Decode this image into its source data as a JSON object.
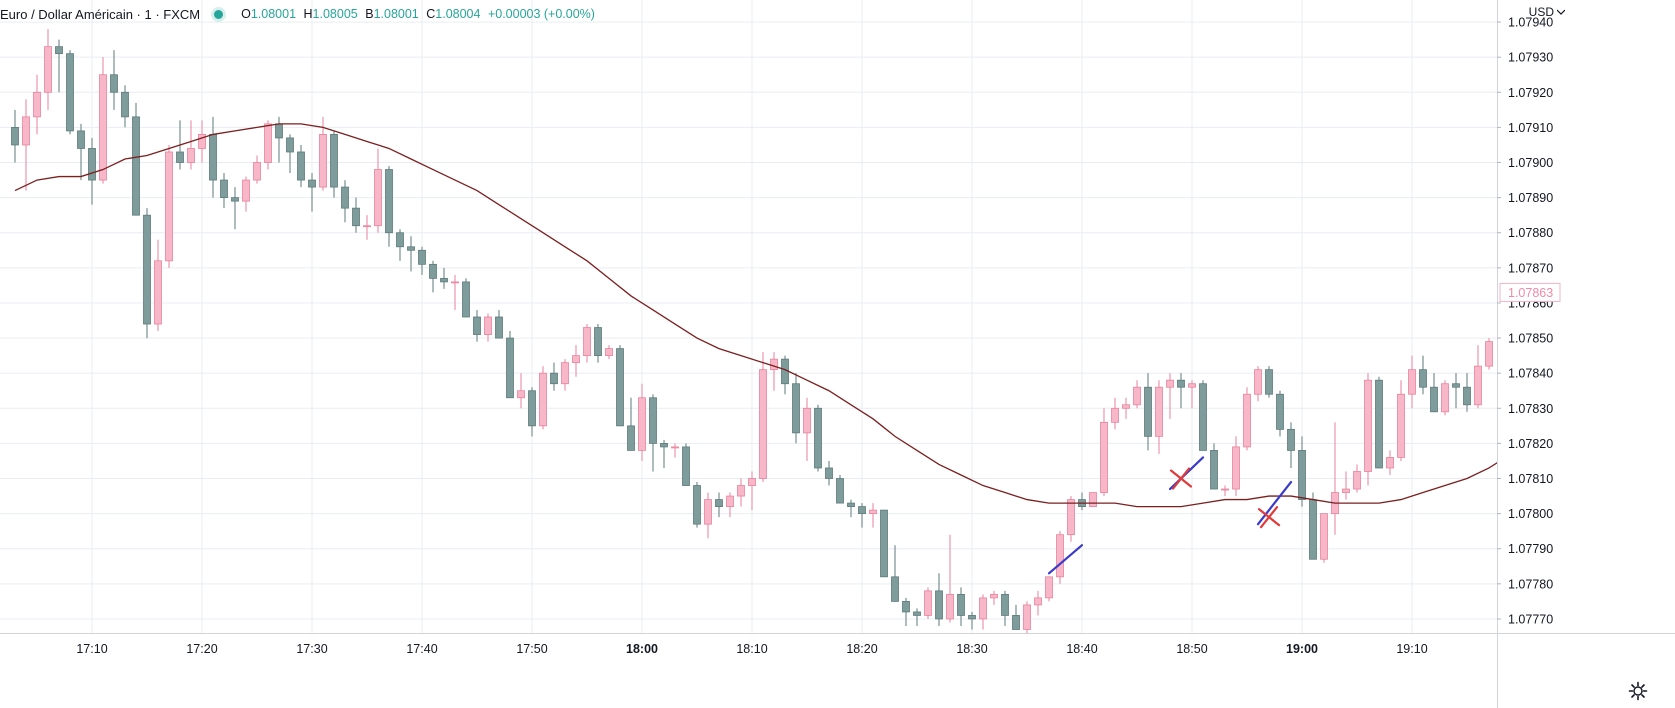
{
  "legend": {
    "symbol": "Euro / Dollar Américain · 1 · FXCM",
    "open_label": "O",
    "open": "1.08001",
    "high_label": "H",
    "high": "1.08005",
    "low_label": "B",
    "low": "1.08001",
    "close_label": "C",
    "close": "1.08004",
    "change": "+0.00003 (+0.00%)"
  },
  "price_scale": {
    "currency": "USD",
    "ticks": [
      "1.07940",
      "1.07930",
      "1.07920",
      "1.07910",
      "1.07900",
      "1.07890",
      "1.07880",
      "1.07870",
      "1.07860",
      "1.07850",
      "1.07840",
      "1.07830",
      "1.07820",
      "1.07810",
      "1.07800",
      "1.07790",
      "1.07780",
      "1.07770"
    ],
    "current_price": "1.07863"
  },
  "chart_data": {
    "type": "candlestick",
    "x_unit": "time, 1-minute bars",
    "ylim": [
      1.07766,
      1.07946
    ],
    "x_ticks": [
      {
        "label": "17:10",
        "bold": false
      },
      {
        "label": "17:20",
        "bold": false
      },
      {
        "label": "17:30",
        "bold": false
      },
      {
        "label": "17:40",
        "bold": false
      },
      {
        "label": "17:50",
        "bold": false
      },
      {
        "label": "18:00",
        "bold": true
      },
      {
        "label": "18:10",
        "bold": false
      },
      {
        "label": "18:20",
        "bold": false
      },
      {
        "label": "18:30",
        "bold": false
      },
      {
        "label": "18:40",
        "bold": false
      },
      {
        "label": "18:50",
        "bold": false
      },
      {
        "label": "19:00",
        "bold": true
      },
      {
        "label": "19:10",
        "bold": false
      }
    ],
    "candles": [
      [
        17.03,
        1.0791,
        1.07915,
        1.079,
        1.07905
      ],
      [
        17.04,
        1.07905,
        1.07918,
        1.07892,
        1.07913
      ],
      [
        17.05,
        1.07913,
        1.07925,
        1.07908,
        1.0792
      ],
      [
        17.06,
        1.0792,
        1.07938,
        1.07915,
        1.07933
      ],
      [
        17.07,
        1.07933,
        1.07935,
        1.0792,
        1.07931
      ],
      [
        17.08,
        1.07931,
        1.07932,
        1.07908,
        1.07909
      ],
      [
        17.09,
        1.07909,
        1.07911,
        1.07895,
        1.07904
      ],
      [
        17.1,
        1.07904,
        1.07907,
        1.07888,
        1.07895
      ],
      [
        17.11,
        1.07895,
        1.0793,
        1.07894,
        1.07925
      ],
      [
        17.12,
        1.07925,
        1.07932,
        1.07915,
        1.0792
      ],
      [
        17.13,
        1.0792,
        1.07922,
        1.0791,
        1.07913
      ],
      [
        17.14,
        1.07913,
        1.07917,
        1.07885,
        1.07885
      ],
      [
        17.15,
        1.07885,
        1.07887,
        1.0785,
        1.07854
      ],
      [
        17.16,
        1.07854,
        1.07878,
        1.07852,
        1.07872
      ],
      [
        17.17,
        1.07872,
        1.07905,
        1.0787,
        1.07903
      ],
      [
        17.18,
        1.07903,
        1.07912,
        1.07898,
        1.079
      ],
      [
        17.19,
        1.079,
        1.07912,
        1.07898,
        1.07904
      ],
      [
        17.2,
        1.07904,
        1.07912,
        1.079,
        1.07908
      ],
      [
        17.21,
        1.07908,
        1.07913,
        1.0789,
        1.07895
      ],
      [
        17.22,
        1.07895,
        1.07897,
        1.07887,
        1.0789
      ],
      [
        17.23,
        1.0789,
        1.07893,
        1.07881,
        1.07889
      ],
      [
        17.24,
        1.07889,
        1.07896,
        1.07886,
        1.07895
      ],
      [
        17.25,
        1.07895,
        1.07902,
        1.07894,
        1.079
      ],
      [
        17.26,
        1.079,
        1.07912,
        1.07898,
        1.07911
      ],
      [
        17.27,
        1.07911,
        1.07913,
        1.079,
        1.07907
      ],
      [
        17.28,
        1.07907,
        1.07908,
        1.07897,
        1.07903
      ],
      [
        17.29,
        1.07903,
        1.07905,
        1.07893,
        1.07895
      ],
      [
        17.3,
        1.07895,
        1.07897,
        1.07886,
        1.07893
      ],
      [
        17.31,
        1.07893,
        1.07913,
        1.07892,
        1.07908
      ],
      [
        17.32,
        1.07908,
        1.07909,
        1.0789,
        1.07893
      ],
      [
        17.33,
        1.07893,
        1.07895,
        1.07883,
        1.07887
      ],
      [
        17.34,
        1.07887,
        1.0789,
        1.0788,
        1.07882
      ],
      [
        17.35,
        1.07882,
        1.07885,
        1.07878,
        1.07882
      ],
      [
        17.36,
        1.07882,
        1.07904,
        1.0788,
        1.07898
      ],
      [
        17.37,
        1.07898,
        1.07899,
        1.07876,
        1.0788
      ],
      [
        17.38,
        1.0788,
        1.07881,
        1.07872,
        1.07876
      ],
      [
        17.39,
        1.07876,
        1.07879,
        1.07869,
        1.07875
      ],
      [
        17.4,
        1.07875,
        1.07876,
        1.07868,
        1.07871
      ],
      [
        17.41,
        1.07871,
        1.07872,
        1.07863,
        1.07867
      ],
      [
        17.42,
        1.07867,
        1.0787,
        1.07864,
        1.07866
      ],
      [
        17.43,
        1.07866,
        1.07868,
        1.07858,
        1.07866
      ],
      [
        17.44,
        1.07866,
        1.07867,
        1.07856,
        1.07856
      ],
      [
        17.45,
        1.07856,
        1.07858,
        1.07849,
        1.07851
      ],
      [
        17.46,
        1.07851,
        1.07857,
        1.07849,
        1.07856
      ],
      [
        17.47,
        1.07856,
        1.07858,
        1.0785,
        1.0785
      ],
      [
        17.48,
        1.0785,
        1.07852,
        1.07833,
        1.07833
      ],
      [
        17.49,
        1.07833,
        1.0784,
        1.0783,
        1.07835
      ],
      [
        17.5,
        1.07835,
        1.07836,
        1.07822,
        1.07825
      ],
      [
        17.51,
        1.07825,
        1.07842,
        1.07824,
        1.0784
      ],
      [
        17.52,
        1.0784,
        1.07843,
        1.07835,
        1.07837
      ],
      [
        17.53,
        1.07837,
        1.07844,
        1.07835,
        1.07843
      ],
      [
        17.54,
        1.07843,
        1.07848,
        1.07839,
        1.07845
      ],
      [
        17.55,
        1.07845,
        1.07854,
        1.07843,
        1.07853
      ],
      [
        17.56,
        1.07853,
        1.07854,
        1.07843,
        1.07845
      ],
      [
        17.57,
        1.07845,
        1.07848,
        1.07844,
        1.07847
      ],
      [
        17.58,
        1.07847,
        1.07848,
        1.07825,
        1.07825
      ],
      [
        17.59,
        1.07825,
        1.07833,
        1.07818,
        1.07818
      ],
      [
        18.0,
        1.07818,
        1.07837,
        1.07815,
        1.07833
      ],
      [
        18.01,
        1.07833,
        1.07834,
        1.07812,
        1.0782
      ],
      [
        18.02,
        1.0782,
        1.07821,
        1.07813,
        1.07819
      ],
      [
        18.03,
        1.07819,
        1.0782,
        1.07816,
        1.07819
      ],
      [
        18.04,
        1.07819,
        1.0782,
        1.07808,
        1.07808
      ],
      [
        18.05,
        1.07808,
        1.07809,
        1.07796,
        1.07797
      ],
      [
        18.06,
        1.07797,
        1.07806,
        1.07793,
        1.07804
      ],
      [
        18.07,
        1.07804,
        1.07806,
        1.07799,
        1.07802
      ],
      [
        18.08,
        1.07802,
        1.07806,
        1.07799,
        1.07805
      ],
      [
        18.09,
        1.07805,
        1.0781,
        1.07802,
        1.07808
      ],
      [
        18.1,
        1.07808,
        1.07812,
        1.07801,
        1.0781
      ],
      [
        18.11,
        1.0781,
        1.07846,
        1.07809,
        1.07841
      ],
      [
        18.12,
        1.07841,
        1.07846,
        1.07835,
        1.07844
      ],
      [
        18.13,
        1.07844,
        1.07845,
        1.07834,
        1.07837
      ],
      [
        18.14,
        1.07837,
        1.0784,
        1.0782,
        1.07823
      ],
      [
        18.15,
        1.07823,
        1.07833,
        1.07815,
        1.0783
      ],
      [
        18.16,
        1.0783,
        1.07831,
        1.07812,
        1.07813
      ],
      [
        18.17,
        1.07813,
        1.07815,
        1.07808,
        1.0781
      ],
      [
        18.18,
        1.0781,
        1.07811,
        1.07803,
        1.07803
      ],
      [
        18.19,
        1.07803,
        1.07804,
        1.07799,
        1.07802
      ],
      [
        18.2,
        1.07802,
        1.07803,
        1.07796,
        1.078
      ],
      [
        18.21,
        1.078,
        1.07803,
        1.07796,
        1.07801
      ],
      [
        18.22,
        1.07801,
        1.07801,
        1.07782,
        1.07782
      ],
      [
        18.23,
        1.07782,
        1.07791,
        1.07775,
        1.07775
      ],
      [
        18.24,
        1.07775,
        1.07776,
        1.07768,
        1.07772
      ],
      [
        18.25,
        1.07772,
        1.07773,
        1.07768,
        1.07771
      ],
      [
        18.26,
        1.07771,
        1.07779,
        1.0777,
        1.07778
      ],
      [
        18.27,
        1.07778,
        1.07783,
        1.07768,
        1.0777
      ],
      [
        18.28,
        1.0777,
        1.07794,
        1.07769,
        1.07777
      ],
      [
        18.29,
        1.07777,
        1.07779,
        1.07768,
        1.07771
      ],
      [
        18.3,
        1.07771,
        1.07772,
        1.07767,
        1.0777
      ],
      [
        18.31,
        1.0777,
        1.07777,
        1.07767,
        1.07776
      ],
      [
        18.32,
        1.07776,
        1.07778,
        1.07774,
        1.07777
      ],
      [
        18.33,
        1.07777,
        1.07778,
        1.07768,
        1.07771
      ],
      [
        18.34,
        1.07771,
        1.07774,
        1.07767,
        1.07767
      ],
      [
        18.35,
        1.07767,
        1.07775,
        1.07766,
        1.07774
      ],
      [
        18.36,
        1.07774,
        1.07778,
        1.07771,
        1.07776
      ],
      [
        18.37,
        1.07776,
        1.07782,
        1.07775,
        1.07782
      ],
      [
        18.38,
        1.07782,
        1.07795,
        1.0778,
        1.07794
      ],
      [
        18.39,
        1.07794,
        1.07805,
        1.07792,
        1.07804
      ],
      [
        18.4,
        1.07804,
        1.07806,
        1.07801,
        1.07802
      ],
      [
        18.41,
        1.07802,
        1.07806,
        1.07802,
        1.07806
      ],
      [
        18.42,
        1.07806,
        1.0783,
        1.07805,
        1.07826
      ],
      [
        18.43,
        1.07826,
        1.07833,
        1.07824,
        1.0783
      ],
      [
        18.44,
        1.0783,
        1.07833,
        1.07827,
        1.07831
      ],
      [
        18.45,
        1.07831,
        1.07838,
        1.0783,
        1.07836
      ],
      [
        18.46,
        1.07836,
        1.0784,
        1.07818,
        1.07822
      ],
      [
        18.47,
        1.07822,
        1.07838,
        1.07817,
        1.07836
      ],
      [
        18.48,
        1.07836,
        1.0784,
        1.07827,
        1.07838
      ],
      [
        18.49,
        1.07838,
        1.0784,
        1.0783,
        1.07836
      ],
      [
        18.5,
        1.07836,
        1.07838,
        1.0783,
        1.07837
      ],
      [
        18.51,
        1.07837,
        1.07838,
        1.07818,
        1.07818
      ],
      [
        18.52,
        1.07818,
        1.0782,
        1.07807,
        1.07807
      ],
      [
        18.53,
        1.07807,
        1.07808,
        1.07805,
        1.07807
      ],
      [
        18.54,
        1.07807,
        1.07822,
        1.07805,
        1.07819
      ],
      [
        18.55,
        1.07819,
        1.07836,
        1.07818,
        1.07834
      ],
      [
        18.56,
        1.07834,
        1.07842,
        1.07832,
        1.07841
      ],
      [
        18.57,
        1.07841,
        1.07842,
        1.07833,
        1.07834
      ],
      [
        18.58,
        1.07834,
        1.07835,
        1.07822,
        1.07824
      ],
      [
        18.59,
        1.07824,
        1.07826,
        1.07813,
        1.07818
      ],
      [
        19.0,
        1.07818,
        1.07822,
        1.07802,
        1.07804
      ],
      [
        19.01,
        1.07804,
        1.07806,
        1.07787,
        1.07787
      ],
      [
        19.02,
        1.07787,
        1.078,
        1.07786,
        1.078
      ],
      [
        19.03,
        1.078,
        1.07826,
        1.07794,
        1.07806
      ],
      [
        19.04,
        1.07806,
        1.07812,
        1.07804,
        1.07807
      ],
      [
        19.05,
        1.07807,
        1.07814,
        1.07806,
        1.07812
      ],
      [
        19.06,
        1.07812,
        1.0784,
        1.07808,
        1.07838
      ],
      [
        19.07,
        1.07838,
        1.07839,
        1.07813,
        1.07813
      ],
      [
        19.08,
        1.07813,
        1.07818,
        1.07811,
        1.07816
      ],
      [
        19.09,
        1.07816,
        1.07838,
        1.07815,
        1.07834
      ],
      [
        19.1,
        1.07834,
        1.07845,
        1.0783,
        1.07841
      ],
      [
        19.11,
        1.07841,
        1.07845,
        1.07834,
        1.07836
      ],
      [
        19.12,
        1.07836,
        1.0784,
        1.0783,
        1.07829
      ],
      [
        19.13,
        1.07829,
        1.07838,
        1.07828,
        1.07837
      ],
      [
        19.14,
        1.07837,
        1.0784,
        1.0783,
        1.07836
      ],
      [
        19.15,
        1.07836,
        1.0784,
        1.07829,
        1.07831
      ],
      [
        19.16,
        1.07831,
        1.07848,
        1.0783,
        1.07842
      ],
      [
        19.17,
        1.07842,
        1.0785,
        1.07841,
        1.07849
      ]
    ],
    "moving_average": {
      "color": "#7b1f1f",
      "points": [
        [
          17.03,
          1.07892
        ],
        [
          17.05,
          1.07895
        ],
        [
          17.07,
          1.07896
        ],
        [
          17.09,
          1.07896
        ],
        [
          17.11,
          1.07898
        ],
        [
          17.13,
          1.07901
        ],
        [
          17.15,
          1.07902
        ],
        [
          17.17,
          1.07904
        ],
        [
          17.19,
          1.07906
        ],
        [
          17.21,
          1.07908
        ],
        [
          17.23,
          1.07909
        ],
        [
          17.25,
          1.0791
        ],
        [
          17.27,
          1.07911
        ],
        [
          17.29,
          1.07911
        ],
        [
          17.31,
          1.0791
        ],
        [
          17.33,
          1.07908
        ],
        [
          17.35,
          1.07906
        ],
        [
          17.37,
          1.07904
        ],
        [
          17.39,
          1.07901
        ],
        [
          17.41,
          1.07898
        ],
        [
          17.43,
          1.07895
        ],
        [
          17.45,
          1.07892
        ],
        [
          17.47,
          1.07888
        ],
        [
          17.49,
          1.07884
        ],
        [
          17.51,
          1.0788
        ],
        [
          17.53,
          1.07876
        ],
        [
          17.55,
          1.07872
        ],
        [
          17.57,
          1.07867
        ],
        [
          17.59,
          1.07862
        ],
        [
          18.01,
          1.07858
        ],
        [
          18.03,
          1.07854
        ],
        [
          18.05,
          1.0785
        ],
        [
          18.07,
          1.07847
        ],
        [
          18.09,
          1.07845
        ],
        [
          18.11,
          1.07843
        ],
        [
          18.13,
          1.07841
        ],
        [
          18.15,
          1.07838
        ],
        [
          18.17,
          1.07835
        ],
        [
          18.19,
          1.07831
        ],
        [
          18.21,
          1.07827
        ],
        [
          18.23,
          1.07822
        ],
        [
          18.25,
          1.07818
        ],
        [
          18.27,
          1.07814
        ],
        [
          18.29,
          1.07811
        ],
        [
          18.31,
          1.07808
        ],
        [
          18.33,
          1.07806
        ],
        [
          18.35,
          1.07804
        ],
        [
          18.37,
          1.07803
        ],
        [
          18.39,
          1.07803
        ],
        [
          18.41,
          1.07803
        ],
        [
          18.43,
          1.07803
        ],
        [
          18.45,
          1.07802
        ],
        [
          18.47,
          1.07802
        ],
        [
          18.49,
          1.07802
        ],
        [
          18.51,
          1.07803
        ],
        [
          18.53,
          1.07804
        ],
        [
          18.55,
          1.07804
        ],
        [
          18.57,
          1.07805
        ],
        [
          18.59,
          1.07805
        ],
        [
          19.01,
          1.07804
        ],
        [
          19.03,
          1.07803
        ],
        [
          19.05,
          1.07803
        ],
        [
          19.07,
          1.07803
        ],
        [
          19.09,
          1.07804
        ],
        [
          19.11,
          1.07806
        ],
        [
          19.13,
          1.07808
        ],
        [
          19.15,
          1.0781
        ],
        [
          19.17,
          1.07813
        ],
        [
          19.18,
          1.07815
        ]
      ]
    },
    "annotations": [
      {
        "type": "line",
        "color": "#3a3acb",
        "from": [
          18.37,
          1.07783
        ],
        "to": [
          18.4,
          1.07791
        ]
      },
      {
        "type": "line",
        "color": "#3a3acb",
        "from": [
          18.48,
          1.07807
        ],
        "to": [
          18.51,
          1.07816
        ]
      },
      {
        "type": "line",
        "color": "#3a3acb",
        "from": [
          18.56,
          1.07797
        ],
        "to": [
          18.59,
          1.07809
        ]
      },
      {
        "type": "cross",
        "color": "#e03a3a",
        "at": [
          18.49,
          1.0781
        ]
      },
      {
        "type": "cross",
        "color": "#e03a3a",
        "at": [
          18.57,
          1.07799
        ]
      }
    ],
    "colors": {
      "up": "#f8b7c8",
      "up_border": "#e8829c",
      "down": "#7e9c9c",
      "down_border": "#5e7a7a",
      "grid": "#e9edf3"
    }
  }
}
